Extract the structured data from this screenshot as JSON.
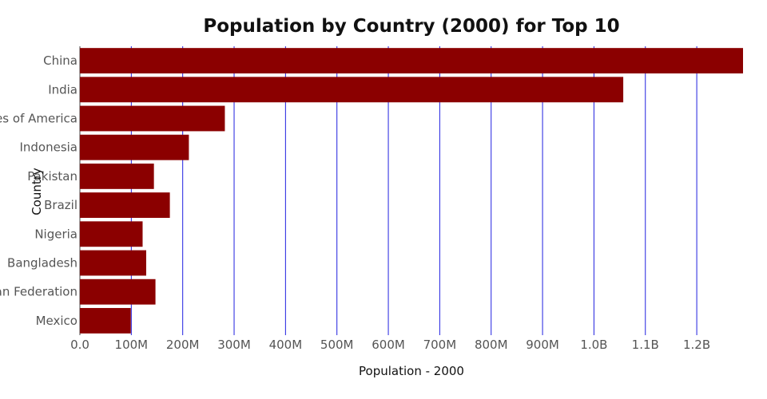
{
  "chart_data": {
    "type": "bar",
    "orientation": "horizontal",
    "title": "Population by Country (2000) for Top 10",
    "xlabel": "Population - 2000",
    "ylabel": "Country",
    "categories": [
      "China",
      "India",
      "United States of America",
      "Indonesia",
      "Pakistan",
      "Brazil",
      "Nigeria",
      "Bangladesh",
      "Russian Federation",
      "Mexico"
    ],
    "values": [
      1290000000,
      1057000000,
      282000000,
      212000000,
      144000000,
      175000000,
      122000000,
      129000000,
      147000000,
      99000000
    ],
    "xlim": [
      0,
      1290000000
    ],
    "xticks": [
      0,
      100000000,
      200000000,
      300000000,
      400000000,
      500000000,
      600000000,
      700000000,
      800000000,
      900000000,
      1000000000,
      1100000000,
      1200000000
    ],
    "xtick_labels": [
      "0.0",
      "100M",
      "200M",
      "300M",
      "400M",
      "500M",
      "600M",
      "700M",
      "800M",
      "900M",
      "1.0B",
      "1.1B",
      "1.2B"
    ],
    "grid": true,
    "legend": "none",
    "colors": {
      "bar": "#8b0000",
      "grid": "#2020e0",
      "text": "#555555"
    }
  }
}
